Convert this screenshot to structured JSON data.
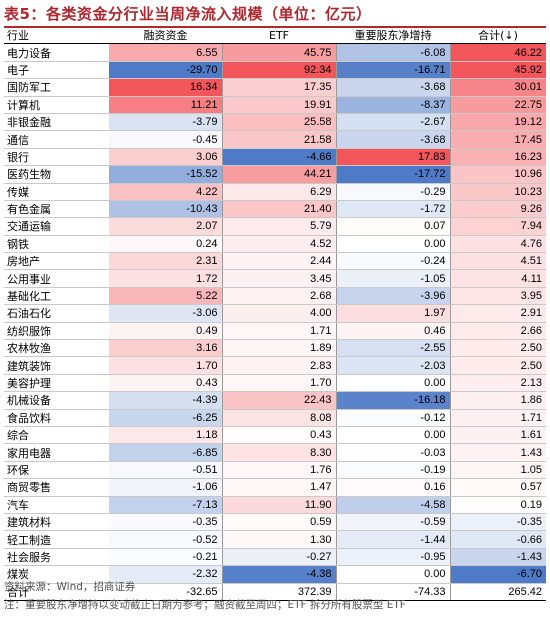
{
  "title": "表5：各类资金分行业当周净流入规模（单位：亿元）",
  "headers": [
    "行业",
    "融资资金",
    "ETF",
    "重要股东净增持",
    "合计(↓)"
  ],
  "colors": {
    "pos_strong": "#f2555a",
    "pos_mid": "#f7999c",
    "pos_light": "#fde3e4",
    "neg_strong": "#4f7ac7",
    "neg_mid": "#9fb8e3",
    "neg_light": "#e6edf8",
    "title": "#b0272d"
  },
  "rows": [
    {
      "name": "电力设备",
      "rz": "6.55",
      "etf": "45.75",
      "gd": "-6.08",
      "total": "46.22"
    },
    {
      "name": "电子",
      "rz": "-29.70",
      "etf": "92.34",
      "gd": "-16.71",
      "total": "45.92"
    },
    {
      "name": "国防军工",
      "rz": "16.34",
      "etf": "17.35",
      "gd": "-3.68",
      "total": "30.01"
    },
    {
      "name": "计算机",
      "rz": "11.21",
      "etf": "19.91",
      "gd": "-8.37",
      "total": "22.75"
    },
    {
      "name": "非银金融",
      "rz": "-3.79",
      "etf": "25.58",
      "gd": "-2.67",
      "total": "19.12"
    },
    {
      "name": "通信",
      "rz": "-0.45",
      "etf": "21.58",
      "gd": "-3.68",
      "total": "17.45"
    },
    {
      "name": "银行",
      "rz": "3.06",
      "etf": "-4.66",
      "gd": "17.83",
      "total": "16.23"
    },
    {
      "name": "医药生物",
      "rz": "-15.52",
      "etf": "44.21",
      "gd": "-17.72",
      "total": "10.96"
    },
    {
      "name": "传媒",
      "rz": "4.22",
      "etf": "6.29",
      "gd": "-0.29",
      "total": "10.23"
    },
    {
      "name": "有色金属",
      "rz": "-10.43",
      "etf": "21.40",
      "gd": "-1.72",
      "total": "9.26"
    },
    {
      "name": "交通运输",
      "rz": "2.07",
      "etf": "5.79",
      "gd": "0.07",
      "total": "7.94"
    },
    {
      "name": "钢铁",
      "rz": "0.24",
      "etf": "4.52",
      "gd": "0.00",
      "total": "4.76"
    },
    {
      "name": "房地产",
      "rz": "2.31",
      "etf": "2.44",
      "gd": "-0.24",
      "total": "4.51"
    },
    {
      "name": "公用事业",
      "rz": "1.72",
      "etf": "3.45",
      "gd": "-1.05",
      "total": "4.11"
    },
    {
      "name": "基础化工",
      "rz": "5.22",
      "etf": "2.68",
      "gd": "-3.96",
      "total": "3.95"
    },
    {
      "name": "石油石化",
      "rz": "-3.06",
      "etf": "4.00",
      "gd": "1.97",
      "total": "2.91"
    },
    {
      "name": "纺织服饰",
      "rz": "0.49",
      "etf": "1.71",
      "gd": "0.46",
      "total": "2.66"
    },
    {
      "name": "农林牧渔",
      "rz": "3.16",
      "etf": "1.89",
      "gd": "-2.55",
      "total": "2.50"
    },
    {
      "name": "建筑装饰",
      "rz": "1.70",
      "etf": "2.83",
      "gd": "-2.03",
      "total": "2.50"
    },
    {
      "name": "美容护理",
      "rz": "0.43",
      "etf": "1.70",
      "gd": "0.00",
      "total": "2.13"
    },
    {
      "name": "机械设备",
      "rz": "-4.39",
      "etf": "22.43",
      "gd": "-16.18",
      "total": "1.86"
    },
    {
      "name": "食品饮料",
      "rz": "-6.25",
      "etf": "8.08",
      "gd": "-0.12",
      "total": "1.71"
    },
    {
      "name": "综合",
      "rz": "1.18",
      "etf": "0.43",
      "gd": "0.00",
      "total": "1.61"
    },
    {
      "name": "家用电器",
      "rz": "-6.85",
      "etf": "8.30",
      "gd": "-0.03",
      "total": "1.43"
    },
    {
      "name": "环保",
      "rz": "-0.51",
      "etf": "1.76",
      "gd": "-0.19",
      "total": "1.05"
    },
    {
      "name": "商贸零售",
      "rz": "-1.06",
      "etf": "1.47",
      "gd": "0.16",
      "total": "0.57"
    },
    {
      "name": "汽车",
      "rz": "-7.13",
      "etf": "11.90",
      "gd": "-4.58",
      "total": "0.19"
    },
    {
      "name": "建筑材料",
      "rz": "-0.35",
      "etf": "0.59",
      "gd": "-0.59",
      "total": "-0.35"
    },
    {
      "name": "轻工制造",
      "rz": "-0.52",
      "etf": "1.30",
      "gd": "-1.44",
      "total": "-0.66"
    },
    {
      "name": "社会服务",
      "rz": "-0.21",
      "etf": "-0.27",
      "gd": "-0.95",
      "total": "-1.43"
    },
    {
      "name": "煤炭",
      "rz": "-2.32",
      "etf": "-4.38",
      "gd": "0.00",
      "total": "-6.70"
    }
  ],
  "total_row": {
    "name": "合计",
    "rz": "-32.65",
    "etf": "372.39",
    "gd": "-74.33",
    "total": "265.42"
  },
  "source": "资料来源：Wind，招商证券",
  "note": "注：重要股东净增持以变动截止日期为参考；融资截至周四；ETF 拆分所有股票型 ETF"
}
